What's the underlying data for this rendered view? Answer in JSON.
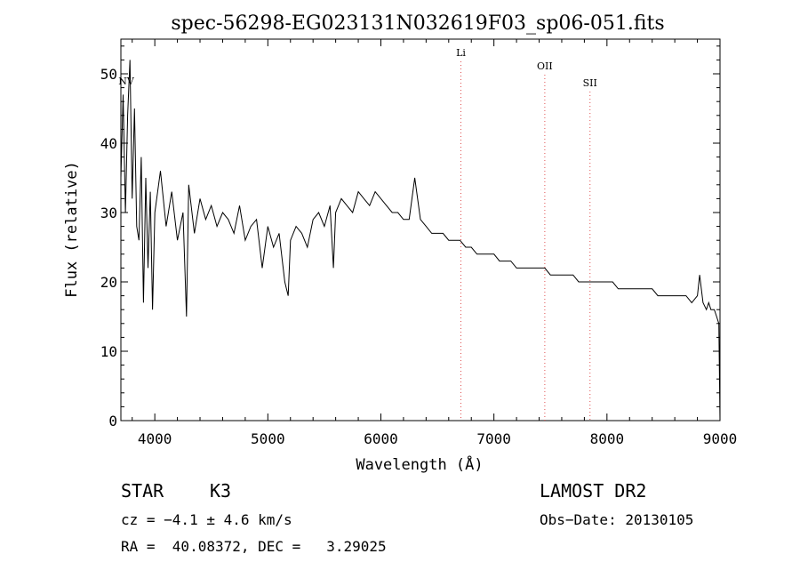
{
  "chart_data": {
    "type": "line",
    "title": "spec-56298-EG023131N032619F03_sp06-051.fits",
    "xlabel": "Wavelength (Å)",
    "ylabel": "Flux (relative)",
    "xlim": [
      3700,
      9000
    ],
    "ylim": [
      0,
      55
    ],
    "xticks": [
      "4000",
      "5000",
      "6000",
      "7000",
      "8000",
      "9000"
    ],
    "yticks": [
      "0",
      "10",
      "20",
      "30",
      "40",
      "50"
    ],
    "grid": false,
    "series": [
      {
        "x": [
          3700,
          3720,
          3740,
          3760,
          3780,
          3800,
          3820,
          3840,
          3860,
          3880,
          3900,
          3920,
          3940,
          3960,
          3980,
          4000,
          4050,
          4100,
          4150,
          4200,
          4250,
          4280,
          4300,
          4350,
          4400,
          4450,
          4500,
          4550,
          4600,
          4650,
          4700,
          4750,
          4800,
          4850,
          4900,
          4950,
          5000,
          5050,
          5100,
          5150,
          5180,
          5200,
          5250,
          5300,
          5350,
          5400,
          5450,
          5500,
          5550,
          5580,
          5600,
          5650,
          5700,
          5750,
          5800,
          5850,
          5900,
          5950,
          6000,
          6050,
          6100,
          6150,
          6200,
          6250,
          6300,
          6350,
          6400,
          6450,
          6500,
          6550,
          6600,
          6650,
          6700,
          6750,
          6800,
          6850,
          6900,
          6950,
          7000,
          7050,
          7100,
          7150,
          7200,
          7250,
          7300,
          7350,
          7400,
          7450,
          7500,
          7550,
          7600,
          7650,
          7700,
          7750,
          7800,
          7850,
          7900,
          7950,
          8000,
          8050,
          8100,
          8150,
          8200,
          8250,
          8300,
          8350,
          8400,
          8450,
          8500,
          8550,
          8600,
          8650,
          8700,
          8750,
          8800,
          8820,
          8850,
          8880,
          8900,
          8920,
          8950,
          8970,
          8990,
          9000
        ],
        "y": [
          35,
          47,
          30,
          44,
          52,
          32,
          45,
          28,
          26,
          38,
          17,
          35,
          22,
          33,
          16,
          30,
          36,
          28,
          33,
          26,
          30,
          15,
          34,
          27,
          32,
          29,
          31,
          28,
          30,
          29,
          27,
          31,
          26,
          28,
          29,
          22,
          28,
          25,
          27,
          20,
          18,
          26,
          28,
          27,
          25,
          29,
          30,
          28,
          31,
          22,
          30,
          32,
          31,
          30,
          33,
          32,
          31,
          33,
          32,
          31,
          30,
          30,
          29,
          29,
          35,
          29,
          28,
          27,
          27,
          27,
          26,
          26,
          26,
          25,
          25,
          24,
          24,
          24,
          24,
          23,
          23,
          23,
          22,
          22,
          22,
          22,
          22,
          22,
          21,
          21,
          21,
          21,
          21,
          20,
          20,
          20,
          20,
          20,
          20,
          20,
          19,
          19,
          19,
          19,
          19,
          19,
          19,
          18,
          18,
          18,
          18,
          18,
          18,
          17,
          18,
          21,
          17,
          16,
          17,
          16,
          16,
          15,
          14,
          0
        ]
      }
    ],
    "line_markers": [
      {
        "label": "NV",
        "x": 3700
      },
      {
        "label": "Li",
        "x": 6708
      },
      {
        "label": "OII",
        "x": 7450
      },
      {
        "label": "SII",
        "x": 7850
      }
    ],
    "colors": {
      "marker_line": "#e05050",
      "spectrum": "#000000"
    }
  },
  "info": {
    "object_class": "STAR",
    "subclass": "K3",
    "survey": "LAMOST DR2",
    "cz": "cz = −4.1 ± 4.6 km/s",
    "obs_date": "Obs−Date: 20130105",
    "coords": "RA =  40.08372, DEC =   3.29025"
  }
}
